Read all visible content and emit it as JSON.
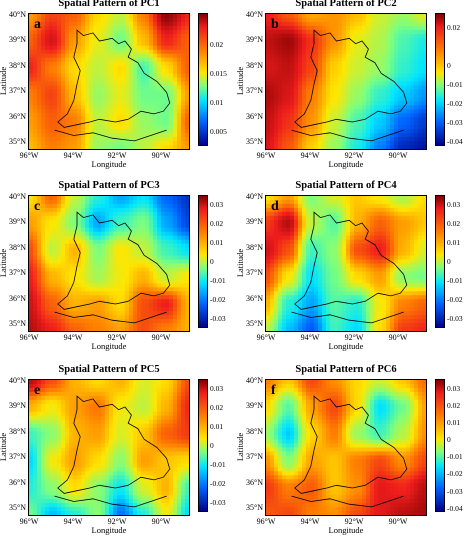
{
  "colorscale": [
    "#00008b",
    "#0064ff",
    "#00e5ff",
    "#7dff7d",
    "#ffe600",
    "#ff7f00",
    "#ee1d1d",
    "#7f0000"
  ],
  "chart_data": [
    {
      "type": "heatmap",
      "letter": "a",
      "title": "Spatial Pattern of PC1",
      "xlabel": "Longitude",
      "ylabel": "Latitude",
      "xticks": [
        "96°W",
        "94°W",
        "92°W",
        "90°W"
      ],
      "yticks": [
        "40°N",
        "39°N",
        "38°N",
        "37°N",
        "36°N",
        "35°N"
      ],
      "xlim": [
        -96,
        -89
      ],
      "ylim": [
        35,
        40
      ],
      "colorbar_ticks": [
        "0.02",
        "0.015",
        "0.01",
        "0.005"
      ],
      "colorbar_range": [
        0.0025,
        0.0255
      ],
      "field": [
        [
          0.018,
          0.021,
          0.02,
          0.016,
          0.014,
          0.019,
          0.025,
          0.022
        ],
        [
          0.02,
          0.023,
          0.018,
          0.015,
          0.012,
          0.017,
          0.022,
          0.02
        ],
        [
          0.022,
          0.019,
          0.016,
          0.014,
          0.016,
          0.011,
          0.016,
          0.02
        ],
        [
          0.019,
          0.021,
          0.017,
          0.013,
          0.015,
          0.012,
          0.012,
          0.018
        ],
        [
          0.018,
          0.02,
          0.019,
          0.014,
          0.016,
          0.013,
          0.012,
          0.02
        ],
        [
          0.017,
          0.019,
          0.018,
          0.013,
          0.012,
          0.014,
          0.016,
          0.018
        ]
      ]
    },
    {
      "type": "heatmap",
      "letter": "b",
      "title": "Spatial Pattern of PC2",
      "xlabel": "Longitude",
      "ylabel": "Latitude",
      "xticks": [
        "96°W",
        "94°W",
        "92°W",
        "90°W"
      ],
      "yticks": [
        "40°N",
        "39°N",
        "38°N",
        "37°N",
        "36°N",
        "35°N"
      ],
      "xlim": [
        -96,
        -89
      ],
      "ylim": [
        35,
        40
      ],
      "colorbar_ticks": [
        "0.02",
        "0",
        "-0.01",
        "-0.02",
        "-0.03",
        "-0.04"
      ],
      "colorbar_range": [
        -0.042,
        0.028
      ],
      "field": [
        [
          0.018,
          0.012,
          0.004,
          0.006,
          0.002,
          -0.006,
          -0.01,
          -0.004
        ],
        [
          0.022,
          0.025,
          0.016,
          0.006,
          -0.004,
          -0.008,
          -0.016,
          -0.02
        ],
        [
          0.02,
          0.022,
          0.014,
          0.0,
          -0.006,
          -0.01,
          -0.018,
          -0.022
        ],
        [
          0.024,
          0.02,
          0.008,
          -0.002,
          -0.01,
          -0.018,
          -0.024,
          -0.028
        ],
        [
          0.022,
          0.016,
          0.006,
          -0.006,
          -0.016,
          -0.024,
          -0.032,
          -0.036
        ],
        [
          0.02,
          0.012,
          0.0,
          -0.01,
          -0.02,
          -0.03,
          -0.038,
          -0.04
        ]
      ]
    },
    {
      "type": "heatmap",
      "letter": "c",
      "title": "Spatial Pattern of PC3",
      "xlabel": "Longitude",
      "ylabel": "Latitude",
      "xticks": [
        "96°W",
        "94°W",
        "92°W",
        "90°W"
      ],
      "yticks": [
        "40°N",
        "39°N",
        "38°N",
        "37°N",
        "36°N",
        "35°N"
      ],
      "xlim": [
        -96,
        -89
      ],
      "ylim": [
        35,
        40
      ],
      "colorbar_ticks": [
        "0.03",
        "0.02",
        "0.01",
        "0",
        "-0.01",
        "-0.02",
        "-0.03"
      ],
      "colorbar_range": [
        -0.035,
        0.035
      ],
      "field": [
        [
          0.005,
          0.018,
          0.0,
          -0.012,
          -0.02,
          -0.015,
          -0.025,
          -0.03
        ],
        [
          0.012,
          0.005,
          -0.005,
          -0.02,
          -0.01,
          -0.005,
          -0.02,
          -0.028
        ],
        [
          0.02,
          0.0,
          0.01,
          -0.005,
          0.005,
          0.0,
          -0.01,
          -0.015
        ],
        [
          0.025,
          0.01,
          0.005,
          -0.002,
          0.004,
          0.01,
          0.0,
          0.005
        ],
        [
          0.028,
          0.018,
          0.01,
          0.012,
          0.006,
          0.02,
          0.025,
          0.01
        ],
        [
          0.03,
          0.025,
          0.018,
          0.015,
          0.012,
          0.02,
          0.015,
          0.01
        ]
      ]
    },
    {
      "type": "heatmap",
      "letter": "d",
      "title": "Spatial Pattern of PC4",
      "xlabel": "Longitude",
      "ylabel": "Latitude",
      "xticks": [
        "96°W",
        "94°W",
        "92°W",
        "90°W"
      ],
      "yticks": [
        "40°N",
        "39°N",
        "38°N",
        "37°N",
        "36°N",
        "35°N"
      ],
      "xlim": [
        -96,
        -89
      ],
      "ylim": [
        35,
        40
      ],
      "colorbar_ticks": [
        "0.03",
        "0.02",
        "0.01",
        "0",
        "-0.01",
        "-0.02",
        "-0.03"
      ],
      "colorbar_range": [
        -0.035,
        0.035
      ],
      "field": [
        [
          0.005,
          0.012,
          -0.005,
          0.002,
          0.008,
          0.004,
          -0.002,
          0.006
        ],
        [
          0.022,
          0.03,
          0.0,
          -0.008,
          0.01,
          0.018,
          0.012,
          0.008
        ],
        [
          0.028,
          0.02,
          -0.01,
          -0.004,
          0.02,
          0.025,
          0.01,
          0.002
        ],
        [
          0.02,
          0.005,
          -0.015,
          -0.006,
          0.006,
          0.012,
          -0.004,
          -0.006
        ],
        [
          0.01,
          -0.012,
          -0.02,
          -0.008,
          -0.012,
          0.004,
          0.015,
          0.018
        ],
        [
          0.0,
          -0.018,
          -0.026,
          -0.01,
          -0.016,
          0.006,
          0.022,
          0.024
        ]
      ]
    },
    {
      "type": "heatmap",
      "letter": "e",
      "title": "Spatial Pattern of PC5",
      "xlabel": "Longitude",
      "ylabel": "Latitude",
      "xticks": [
        "96°W",
        "94°W",
        "92°W",
        "90°W"
      ],
      "yticks": [
        "40°N",
        "39°N",
        "38°N",
        "37°N",
        "36°N",
        "35°N"
      ],
      "xlim": [
        -96,
        -89
      ],
      "ylim": [
        35,
        40
      ],
      "colorbar_ticks": [
        "0.03",
        "0.02",
        "0.01",
        "0",
        "-0.01",
        "-0.02",
        "-0.03"
      ],
      "colorbar_range": [
        -0.035,
        0.035
      ],
      "field": [
        [
          0.03,
          0.02,
          0.01,
          0.006,
          0.01,
          0.002,
          0.006,
          0.02
        ],
        [
          0.01,
          0.004,
          0.012,
          0.016,
          0.004,
          0.0,
          0.01,
          0.024
        ],
        [
          -0.01,
          -0.004,
          0.01,
          0.012,
          0.002,
          0.008,
          0.018,
          0.022
        ],
        [
          -0.016,
          0.004,
          0.012,
          0.006,
          -0.004,
          0.012,
          0.008,
          0.006
        ],
        [
          -0.012,
          -0.004,
          0.006,
          -0.004,
          -0.014,
          0.002,
          0.01,
          -0.01
        ],
        [
          -0.006,
          -0.018,
          -0.012,
          -0.004,
          -0.024,
          -0.012,
          0.004,
          -0.016
        ]
      ]
    },
    {
      "type": "heatmap",
      "letter": "f",
      "title": "Spatial Pattern of PC6",
      "xlabel": "Longitude",
      "ylabel": "Latitude",
      "xticks": [
        "96°W",
        "94°W",
        "92°W",
        "90°W"
      ],
      "yticks": [
        "40°N",
        "39°N",
        "38°N",
        "37°N",
        "36°N",
        "35°N"
      ],
      "xlim": [
        -96,
        -89
      ],
      "ylim": [
        35,
        40
      ],
      "colorbar_ticks": [
        "0.03",
        "0.02",
        "0.01",
        "0",
        "-0.01",
        "-0.02",
        "-0.03",
        "-0.04"
      ],
      "colorbar_range": [
        -0.042,
        0.036
      ],
      "field": [
        [
          0.014,
          0.006,
          0.02,
          0.012,
          0.004,
          -0.002,
          0.006,
          0.016
        ],
        [
          0.004,
          -0.012,
          0.01,
          0.02,
          0.004,
          -0.02,
          -0.01,
          0.01
        ],
        [
          -0.006,
          -0.022,
          0.004,
          0.014,
          -0.006,
          -0.014,
          -0.004,
          0.012
        ],
        [
          0.012,
          -0.008,
          0.01,
          0.006,
          0.014,
          0.02,
          0.012,
          0.02
        ],
        [
          0.022,
          0.014,
          0.018,
          0.006,
          0.012,
          0.026,
          0.024,
          0.03
        ],
        [
          0.018,
          0.02,
          0.014,
          0.012,
          0.02,
          0.026,
          0.03,
          0.032
        ]
      ]
    }
  ]
}
